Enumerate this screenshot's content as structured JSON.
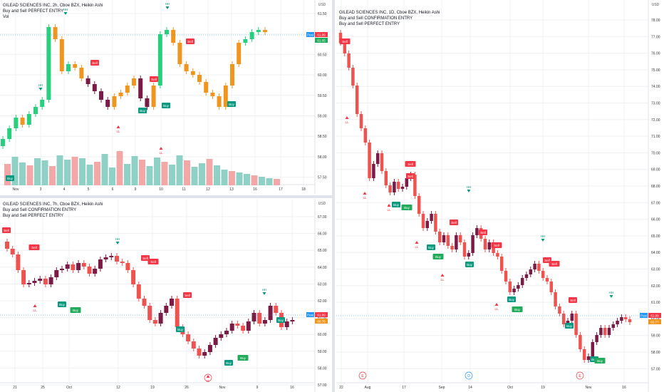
{
  "colors": {
    "bull": "#26d07c",
    "bear": "#ef5350",
    "orange": "#f0961e",
    "maroon": "#7b1a45",
    "vol_up": "#8fd1c6",
    "vol_down": "#f4a7a7",
    "buy": "#089981",
    "buy_bright": "#22ab5a",
    "sell": "#f23645",
    "grid": "#eef0f3"
  },
  "panes": [
    {
      "id": "a",
      "legend": [
        "GILEAD SCIENCES INC, 2h, Cboe BZX, Heikin Ashi",
        "Buy and Sell PERFECT ENTRY",
        "Vol"
      ],
      "currency": "USD",
      "price_labels": [
        "61.50",
        "61.00",
        "60.50",
        "60.00",
        "59.50",
        "59.00",
        "58.50",
        "58.00",
        "57.50"
      ],
      "date_labels": [
        "Nov",
        "3",
        "4",
        "5",
        "6",
        "9",
        "10",
        "11",
        "12",
        "13",
        "16",
        "17",
        "18"
      ],
      "last_prices": {
        "post": "Post",
        "price1": "61.09",
        "price2": "61.05"
      },
      "signals": {
        "hh": "HH",
        "ll": "LL",
        "buy": "Buy",
        "sell": "Sell"
      }
    },
    {
      "id": "b",
      "legend": [
        "GILEAD SCIENCES INC, 7h, Cboe BZX, Heikin Ashi",
        "Buy and Sell CONFIRMATION ENTRY",
        "Buy and Sell PERFECT ENTRY"
      ],
      "currency": "USD",
      "price_labels": [
        "67.00",
        "66.00",
        "65.00",
        "64.00",
        "63.00",
        "62.00",
        "61.00",
        "60.00",
        "59.00",
        "58.00",
        "57.00"
      ],
      "date_labels": [
        "21",
        "25",
        "Oct",
        "12",
        "19",
        "26",
        "Nov",
        "9",
        "16"
      ],
      "last_prices": {
        "post": "Post",
        "price1": "61.09",
        "price2": "60.76"
      },
      "signals": {
        "hh": "HH",
        "ll": "LL",
        "buy": "Buy",
        "sell": "Sell"
      }
    },
    {
      "id": "c",
      "legend": [
        "GILEAD SCIENCES INC, 1D, Cboe BZX, Heikin Ashi",
        "Buy and Sell CONFIRMATION ENTRY",
        "Buy and Sell PERFECT ENTRY"
      ],
      "currency": "USD",
      "price_labels": [
        "78.00",
        "77.00",
        "76.00",
        "75.00",
        "74.00",
        "73.00",
        "72.00",
        "71.00",
        "70.00",
        "69.00",
        "68.00",
        "67.00",
        "66.00",
        "65.00",
        "64.00",
        "63.00",
        "62.00",
        "61.00",
        "60.00",
        "59.00",
        "58.00",
        "57.00"
      ],
      "date_labels": [
        "22",
        "Aug",
        "17",
        "Sep",
        "14",
        "Oct",
        "19",
        "Nov",
        "16"
      ],
      "last_prices": {
        "post": "Post",
        "price1": "61.09",
        "price2": "60.77"
      },
      "signals": {
        "hh": "HH",
        "ll": "LL",
        "buy": "Buy",
        "sell": "Sell"
      },
      "events": [
        "E",
        "D",
        "E"
      ]
    }
  ]
}
